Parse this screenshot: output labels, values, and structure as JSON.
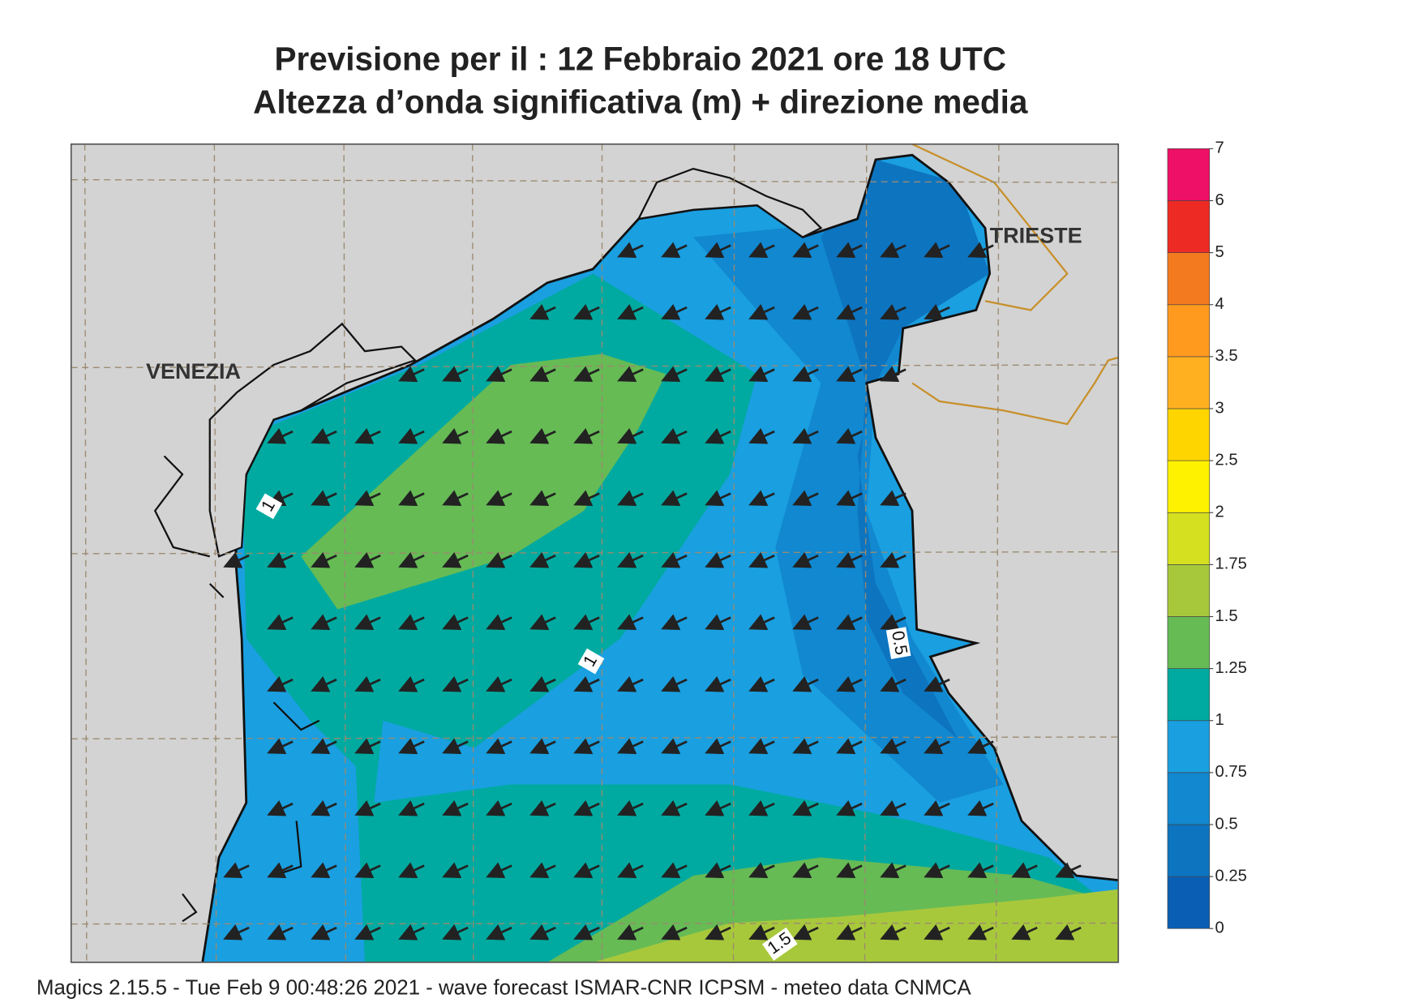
{
  "header": {
    "title_line1": "Previsione per il  :  12  Febbraio 2021   ore 18 UTC",
    "title_line2": "Altezza d’onda significativa (m) + direzione media"
  },
  "labels": {
    "venezia": "VENEZIA",
    "trieste": "TRIESTE"
  },
  "contour_labels": [
    "1",
    "1",
    "0.5",
    "1.5"
  ],
  "colorbar": {
    "ticks": [
      0,
      0.25,
      0.5,
      0.75,
      1,
      1.25,
      1.5,
      1.75,
      2,
      2.5,
      3,
      3.5,
      4,
      5,
      6,
      7
    ],
    "colors": [
      "#0a5fb4",
      "#0d74c0",
      "#1188d0",
      "#1a9fe0",
      "#00aaa0",
      "#66bb55",
      "#a8c83c",
      "#d4e020",
      "#fff200",
      "#ffd500",
      "#ffb020",
      "#ff9a1e",
      "#f47a20",
      "#ee2a24",
      "#ee1066"
    ]
  },
  "footer": "Magics 2.15.5 - Tue Feb  9 00:48:26 2021 - wave forecast  ISMAR-CNR  ICPSM - meteo data   CNMCA"
}
